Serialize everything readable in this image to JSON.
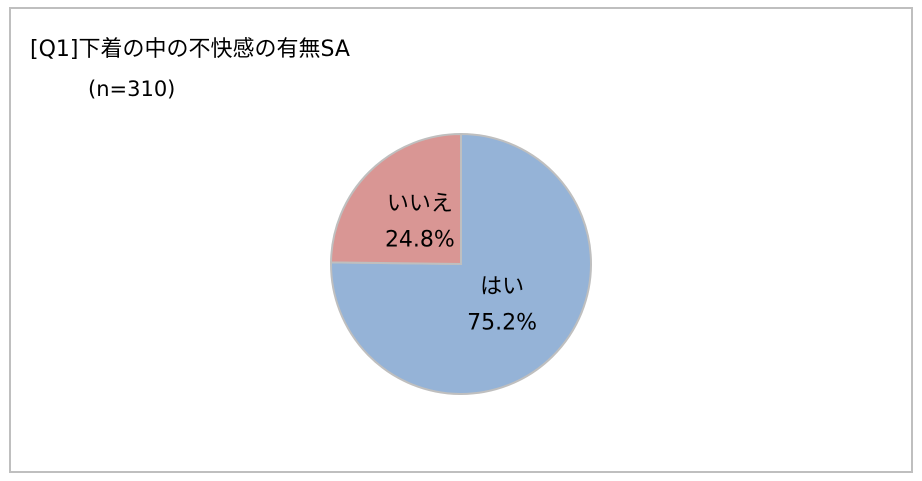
{
  "chart_data": {
    "type": "pie",
    "title": "[Q1]下着の中の不快感の有無SA",
    "subtitle": "(n=310)",
    "categories": [
      "はい",
      "いいえ"
    ],
    "values": [
      75.2,
      24.8
    ],
    "value_labels": [
      "75.2%",
      "24.8%"
    ],
    "colors": [
      "#95b3d7",
      "#d99694"
    ]
  }
}
